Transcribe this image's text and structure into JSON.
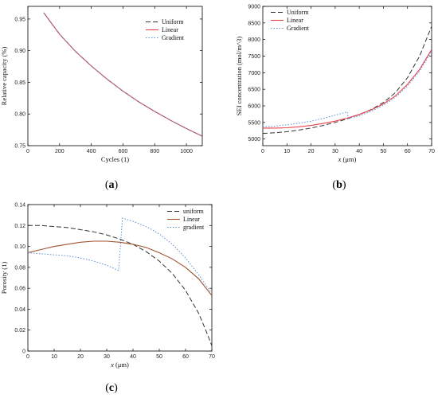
{
  "panel_labels": [
    "(a)",
    "(b)",
    "(c)"
  ],
  "colors": {
    "uniform": "#333333",
    "linear": "#e8424c",
    "gradient": "#5b8fd6",
    "linear_c": "#a0522d"
  },
  "chart_data": [
    {
      "type": "line",
      "panel": "(a)",
      "xlabel": "Cycles (1)",
      "ylabel": "Relative capacity (%)",
      "xlim": [
        0,
        1100
      ],
      "ylim": [
        0.75,
        0.97
      ],
      "xticks": [
        0,
        200,
        400,
        600,
        800,
        1000
      ],
      "yticks": [
        0.75,
        0.8,
        0.85,
        0.9,
        0.95
      ],
      "ytick_labels": [
        "0.75",
        "0.80",
        "0.85",
        "0.90",
        "0.95"
      ],
      "legend_position": "top-right",
      "series": [
        {
          "name": "Uniform",
          "style": "dashed",
          "color": "#333333",
          "x": [
            100,
            200,
            300,
            400,
            500,
            600,
            700,
            800,
            900,
            1000,
            1100
          ],
          "y": [
            0.96,
            0.926,
            0.899,
            0.876,
            0.855,
            0.836,
            0.819,
            0.804,
            0.79,
            0.777,
            0.765
          ]
        },
        {
          "name": "Linear",
          "style": "solid",
          "color": "#e8424c",
          "x": [
            100,
            200,
            300,
            400,
            500,
            600,
            700,
            800,
            900,
            1000,
            1100
          ],
          "y": [
            0.96,
            0.926,
            0.899,
            0.876,
            0.855,
            0.836,
            0.819,
            0.804,
            0.79,
            0.777,
            0.765
          ]
        },
        {
          "name": "Gradient",
          "style": "dotted",
          "color": "#5b8fd6",
          "x": [
            100,
            200,
            300,
            400,
            500,
            600,
            700,
            800,
            900,
            1000,
            1100
          ],
          "y": [
            0.96,
            0.926,
            0.899,
            0.876,
            0.855,
            0.836,
            0.819,
            0.804,
            0.79,
            0.777,
            0.765
          ]
        }
      ]
    },
    {
      "type": "line",
      "panel": "(b)",
      "xlabel": "x (μm)",
      "ylabel": "SEI concentration (mol/m^3)",
      "xlim": [
        0,
        70
      ],
      "ylim": [
        4800,
        9000
      ],
      "xticks": [
        0,
        10,
        20,
        30,
        40,
        50,
        60,
        70
      ],
      "yticks": [
        5000,
        5500,
        6000,
        6500,
        7000,
        7500,
        8000,
        8500,
        9000
      ],
      "legend_position": "top-left",
      "series": [
        {
          "name": "Uniform",
          "style": "dashed",
          "color": "#333333",
          "x": [
            0,
            5,
            10,
            15,
            20,
            25,
            30,
            35,
            40,
            45,
            50,
            55,
            60,
            65,
            70
          ],
          "y": [
            5170,
            5190,
            5220,
            5270,
            5330,
            5410,
            5500,
            5610,
            5740,
            5890,
            6100,
            6400,
            6850,
            7500,
            8400
          ]
        },
        {
          "name": "Linear",
          "style": "solid",
          "color": "#e8424c",
          "x": [
            0,
            5,
            10,
            15,
            20,
            25,
            30,
            35,
            40,
            45,
            50,
            55,
            60,
            65,
            70
          ],
          "y": [
            5330,
            5330,
            5340,
            5370,
            5410,
            5470,
            5540,
            5630,
            5740,
            5880,
            6060,
            6300,
            6650,
            7100,
            7700
          ]
        },
        {
          "name": "Gradient",
          "style": "dotted",
          "color": "#5b8fd6",
          "x": [
            0,
            5,
            10,
            15,
            20,
            25,
            30,
            35,
            35.5,
            40,
            45,
            50,
            55,
            60,
            65,
            70
          ],
          "y": [
            5370,
            5390,
            5430,
            5480,
            5540,
            5620,
            5720,
            5820,
            5630,
            5700,
            5840,
            6020,
            6260,
            6600,
            7050,
            7650
          ]
        }
      ]
    },
    {
      "type": "line",
      "panel": "(c)",
      "xlabel": "x (μm)",
      "ylabel": "Porosity (1)",
      "xlim": [
        0,
        70
      ],
      "ylim": [
        0,
        0.14
      ],
      "xticks": [
        0,
        10,
        20,
        30,
        40,
        50,
        60,
        70
      ],
      "yticks": [
        0,
        0.02,
        0.04,
        0.06,
        0.08,
        0.1,
        0.12,
        0.14
      ],
      "ytick_labels": [
        "0",
        "0.02",
        "0.04",
        "0.06",
        "0.08",
        "0.10",
        "0.12",
        "0.14"
      ],
      "legend_position": "top-right",
      "series": [
        {
          "name": "uniform",
          "style": "dashed",
          "color": "#333333",
          "x": [
            0,
            5,
            10,
            15,
            20,
            25,
            30,
            35,
            40,
            45,
            50,
            55,
            60,
            65,
            68,
            70
          ],
          "y": [
            0.12,
            0.12,
            0.119,
            0.118,
            0.116,
            0.114,
            0.111,
            0.107,
            0.102,
            0.095,
            0.086,
            0.074,
            0.058,
            0.036,
            0.018,
            0.005
          ]
        },
        {
          "name": "Linear",
          "style": "solid",
          "color": "#a0522d",
          "x": [
            0,
            5,
            10,
            15,
            20,
            25,
            30,
            35,
            40,
            45,
            50,
            55,
            60,
            65,
            70
          ],
          "y": [
            0.094,
            0.097,
            0.1,
            0.102,
            0.104,
            0.105,
            0.105,
            0.104,
            0.102,
            0.099,
            0.094,
            0.088,
            0.08,
            0.069,
            0.053
          ]
        },
        {
          "name": "gradient",
          "style": "dotted",
          "color": "#5b8fd6",
          "x": [
            0,
            5,
            10,
            15,
            20,
            25,
            30,
            34.5,
            36,
            40,
            45,
            50,
            55,
            60,
            65,
            70
          ],
          "y": [
            0.094,
            0.093,
            0.092,
            0.091,
            0.089,
            0.086,
            0.082,
            0.077,
            0.127,
            0.124,
            0.119,
            0.112,
            0.102,
            0.089,
            0.073,
            0.055
          ]
        }
      ]
    }
  ]
}
